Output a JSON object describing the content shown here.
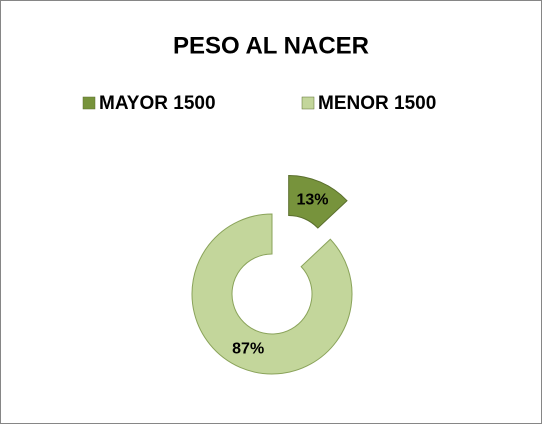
{
  "chart_data": {
    "type": "pie",
    "title": "PESO AL NACER",
    "categories": [
      "MAYOR 1500",
      "MENOR 1500"
    ],
    "values": [
      13,
      87
    ],
    "value_labels": [
      "13%",
      "87%"
    ],
    "colors": [
      "#77933c",
      "#c3d69b"
    ]
  }
}
